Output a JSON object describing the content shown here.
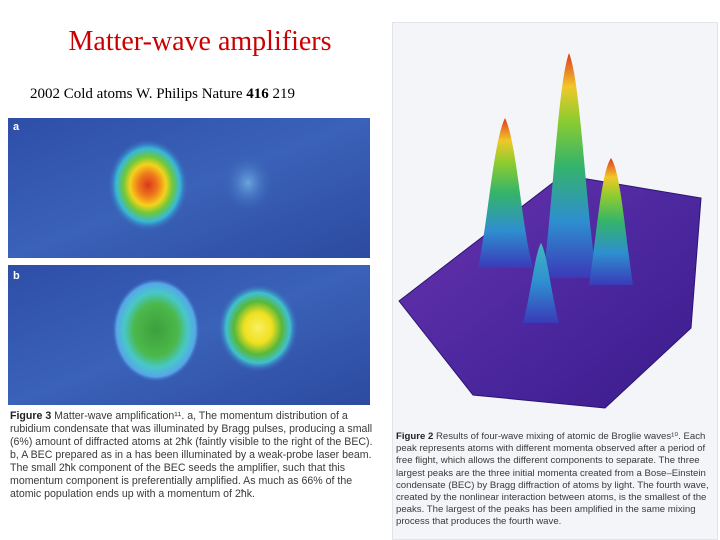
{
  "title": "Matter-wave amplifiers",
  "subtitle": {
    "text": "2002 Cold atoms W. Philips Nature",
    "volume": "416",
    "pages": "219"
  },
  "left_figure": {
    "panel_labels": [
      "a",
      "b"
    ],
    "caption_label": "Figure 3",
    "caption_text": "Matter-wave amplification¹¹. a, The momentum distribution of a rubidium condensate that was illuminated by Bragg pulses, producing a small (6%) amount of diffracted atoms at 2ħk (faintly visible to the right of the BEC). b, A BEC prepared as in a has been illuminated by a weak-probe laser beam. The small 2ħk component of the BEC seeds the amplifier, such that this momentum component is preferentially amplified. As much as 66% of the atomic population ends up with a momentum of 2ħk."
  },
  "right_figure": {
    "caption_label": "Figure 2",
    "caption_text": "Results of four-wave mixing of atomic de Broglie waves¹⁰. Each peak represents atoms with different momenta observed after a period of free flight, which allows the different components to separate. The three largest peaks are the three initial momenta created from a Bose–Einstein condensate (BEC) by Bragg diffraction of atoms by light. The fourth wave, created by the nonlinear interaction between atoms, is the smallest of the peaks. The largest of the peaks has been amplified in the same mixing process that produces the fourth wave."
  }
}
